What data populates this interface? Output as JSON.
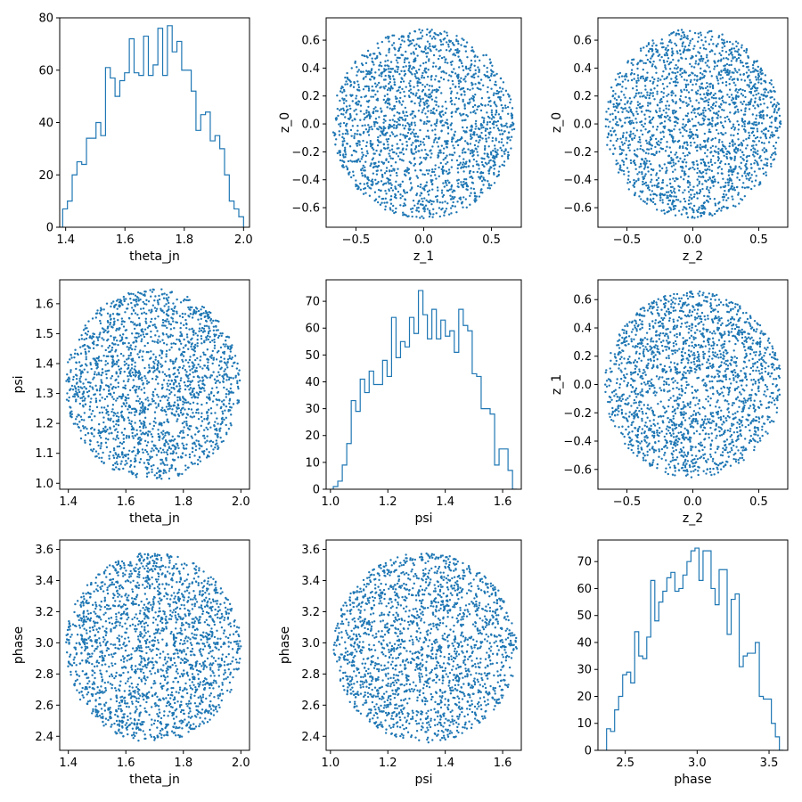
{
  "figure": {
    "background": "#ffffff",
    "series_color": "#1f77b4"
  },
  "chart_data": [
    {
      "type": "histogram",
      "title": "",
      "xlabel": "theta_jn",
      "ylabel": "",
      "xlim": [
        1.38,
        2.02
      ],
      "ylim": [
        0,
        80
      ],
      "xticks": [
        1.4,
        1.6,
        1.8,
        2.0
      ],
      "xtick_labels": [
        "1.4",
        "1.6",
        "1.8",
        "2.0"
      ],
      "yticks": [
        0,
        20,
        40,
        60,
        80
      ],
      "ytick_labels": [
        "0",
        "20",
        "40",
        "60",
        "80"
      ],
      "bin_range": [
        1.39,
        2.0
      ],
      "counts": [
        7,
        10,
        20,
        25,
        24,
        34,
        34,
        40,
        35,
        61,
        57,
        50,
        56,
        59,
        72,
        59,
        58,
        73,
        58,
        62,
        76,
        58,
        77,
        67,
        71,
        60,
        60,
        52,
        37,
        43,
        44,
        33,
        35,
        30,
        20,
        10,
        7,
        4
      ]
    },
    {
      "type": "scatter",
      "title": "",
      "xlabel": "z_1",
      "ylabel": "z_0",
      "xlim": [
        -0.72,
        0.72
      ],
      "ylim": [
        -0.74,
        0.76
      ],
      "xticks": [
        -0.5,
        0.0,
        0.5
      ],
      "xtick_labels": [
        "−0.5",
        "0.0",
        "0.5"
      ],
      "yticks": [
        -0.6,
        -0.4,
        -0.2,
        0.0,
        0.2,
        0.4,
        0.6
      ],
      "ytick_labels": [
        "−0.6",
        "−0.4",
        "−0.2",
        "0.0",
        "0.2",
        "0.4",
        "0.6"
      ],
      "disk": {
        "center_x": 0.0,
        "center_y": 0.0,
        "radius_x": 0.67,
        "radius_y": 0.68
      },
      "n_points": 2000,
      "seed": 11
    },
    {
      "type": "scatter",
      "title": "",
      "xlabel": "z_2",
      "ylabel": "z_0",
      "xlim": [
        -0.72,
        0.72
      ],
      "ylim": [
        -0.74,
        0.76
      ],
      "xticks": [
        -0.5,
        0.0,
        0.5
      ],
      "xtick_labels": [
        "−0.5",
        "0.0",
        "0.5"
      ],
      "yticks": [
        -0.6,
        -0.4,
        -0.2,
        0.0,
        0.2,
        0.4,
        0.6
      ],
      "ytick_labels": [
        "−0.6",
        "−0.4",
        "−0.2",
        "0.0",
        "0.2",
        "0.4",
        "0.6"
      ],
      "disk": {
        "center_x": 0.0,
        "center_y": 0.0,
        "radius_x": 0.67,
        "radius_y": 0.68
      },
      "n_points": 2000,
      "seed": 23
    },
    {
      "type": "scatter",
      "title": "",
      "xlabel": "theta_jn",
      "ylabel": "psi",
      "xlim": [
        1.37,
        2.03
      ],
      "ylim": [
        0.98,
        1.68
      ],
      "xticks": [
        1.4,
        1.6,
        1.8,
        2.0
      ],
      "xtick_labels": [
        "1.4",
        "1.6",
        "1.8",
        "2.0"
      ],
      "yticks": [
        1.0,
        1.1,
        1.2,
        1.3,
        1.4,
        1.5,
        1.6
      ],
      "ytick_labels": [
        "1.0",
        "1.1",
        "1.2",
        "1.3",
        "1.4",
        "1.5",
        "1.6"
      ],
      "disk": {
        "center_x": 1.695,
        "center_y": 1.33,
        "radius_x": 0.305,
        "radius_y": 0.32
      },
      "n_points": 2000,
      "seed": 37
    },
    {
      "type": "histogram",
      "title": "",
      "xlabel": "psi",
      "ylabel": "",
      "xlim": [
        0.985,
        1.665
      ],
      "ylim": [
        0,
        78
      ],
      "xticks": [
        1.0,
        1.2,
        1.4,
        1.6
      ],
      "xtick_labels": [
        "1.0",
        "1.2",
        "1.4",
        "1.6"
      ],
      "yticks": [
        0,
        10,
        20,
        30,
        40,
        50,
        60,
        70
      ],
      "ytick_labels": [
        "0",
        "10",
        "20",
        "30",
        "40",
        "50",
        "60",
        "70"
      ],
      "bin_range": [
        1.01,
        1.65
      ],
      "counts": [
        1,
        3,
        9,
        17,
        33,
        29,
        41,
        36,
        44,
        39,
        39,
        48,
        42,
        64,
        49,
        55,
        53,
        64,
        58,
        74,
        65,
        56,
        67,
        56,
        63,
        57,
        59,
        51,
        67,
        61,
        59,
        43,
        42,
        30,
        30,
        28,
        9,
        15,
        15,
        7,
        0
      ]
    },
    {
      "type": "scatter",
      "title": "",
      "xlabel": "z_2",
      "ylabel": "z_1",
      "xlim": [
        -0.72,
        0.72
      ],
      "ylim": [
        -0.74,
        0.74
      ],
      "xticks": [
        -0.5,
        0.0,
        0.5
      ],
      "xtick_labels": [
        "−0.5",
        "0.0",
        "0.5"
      ],
      "yticks": [
        -0.6,
        -0.4,
        -0.2,
        0.0,
        0.2,
        0.4,
        0.6
      ],
      "ytick_labels": [
        "−0.6",
        "−0.4",
        "−0.2",
        "0.0",
        "0.2",
        "0.4",
        "0.6"
      ],
      "disk": {
        "center_x": 0.0,
        "center_y": 0.0,
        "radius_x": 0.67,
        "radius_y": 0.66
      },
      "n_points": 2000,
      "seed": 53
    },
    {
      "type": "scatter",
      "title": "",
      "xlabel": "theta_jn",
      "ylabel": "phase",
      "xlim": [
        1.37,
        2.03
      ],
      "ylim": [
        2.31,
        3.66
      ],
      "xticks": [
        1.4,
        1.6,
        1.8,
        2.0
      ],
      "xtick_labels": [
        "1.4",
        "1.6",
        "1.8",
        "2.0"
      ],
      "yticks": [
        2.4,
        2.6,
        2.8,
        3.0,
        3.2,
        3.4,
        3.6
      ],
      "ytick_labels": [
        "2.4",
        "2.6",
        "2.8",
        "3.0",
        "3.2",
        "3.4",
        "3.6"
      ],
      "disk": {
        "center_x": 1.695,
        "center_y": 2.97,
        "radius_x": 0.305,
        "radius_y": 0.61
      },
      "n_points": 2000,
      "seed": 71
    },
    {
      "type": "scatter",
      "title": "",
      "xlabel": "psi",
      "ylabel": "phase",
      "xlim": [
        0.985,
        1.665
      ],
      "ylim": [
        2.31,
        3.66
      ],
      "xticks": [
        1.0,
        1.2,
        1.4,
        1.6
      ],
      "xtick_labels": [
        "1.0",
        "1.2",
        "1.4",
        "1.6"
      ],
      "yticks": [
        2.4,
        2.6,
        2.8,
        3.0,
        3.2,
        3.4,
        3.6
      ],
      "ytick_labels": [
        "2.4",
        "2.6",
        "2.8",
        "3.0",
        "3.2",
        "3.4",
        "3.6"
      ],
      "disk": {
        "center_x": 1.33,
        "center_y": 2.97,
        "radius_x": 0.32,
        "radius_y": 0.61
      },
      "n_points": 2000,
      "seed": 89
    },
    {
      "type": "histogram",
      "title": "",
      "xlabel": "phase",
      "ylabel": "",
      "xlim": [
        2.31,
        3.63
      ],
      "ylim": [
        0,
        78
      ],
      "xticks": [
        2.5,
        3.0,
        3.5
      ],
      "xtick_labels": [
        "2.5",
        "3.0",
        "3.5"
      ],
      "yticks": [
        0,
        10,
        20,
        30,
        40,
        50,
        60,
        70
      ],
      "ytick_labels": [
        "0",
        "10",
        "20",
        "30",
        "40",
        "50",
        "60",
        "70"
      ],
      "bin_range": [
        2.37,
        3.6
      ],
      "counts": [
        8,
        7,
        15,
        20,
        28,
        29,
        25,
        44,
        35,
        34,
        42,
        63,
        48,
        55,
        59,
        64,
        66,
        59,
        60,
        65,
        70,
        74,
        75,
        63,
        74,
        74,
        60,
        54,
        67,
        67,
        43,
        56,
        58,
        31,
        35,
        36,
        36,
        40,
        20,
        19,
        19,
        10,
        5,
        0
      ]
    }
  ]
}
